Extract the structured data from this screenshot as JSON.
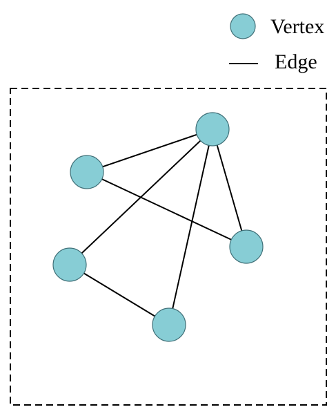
{
  "legend": {
    "vertex_label": "Vertex",
    "edge_label": "Edge"
  },
  "colors": {
    "vertex_fill": "#87CDD5",
    "vertex_stroke": "#3F6F77",
    "edge_stroke": "#000000",
    "frame_stroke": "#000000"
  },
  "graph": {
    "vertices": [
      "v1",
      "v2",
      "v3",
      "v4",
      "v5"
    ],
    "edges": [
      [
        "v1",
        "v2"
      ],
      [
        "v1",
        "v4"
      ],
      [
        "v1",
        "v3"
      ],
      [
        "v1",
        "v5"
      ],
      [
        "v2",
        "v3"
      ],
      [
        "v4",
        "v5"
      ]
    ]
  }
}
